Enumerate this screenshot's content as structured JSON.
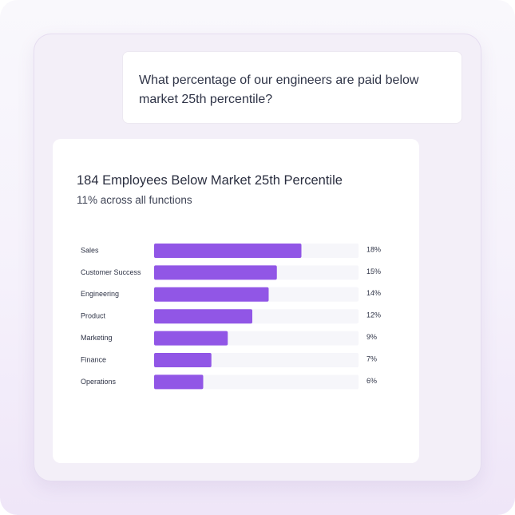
{
  "question": {
    "text": "What percentage of our engineers are paid below market 25th percentile?"
  },
  "chart": {
    "title": "184 Employees Below Market 25th Percentile",
    "subtitle": "11% across all functions"
  },
  "colors": {
    "bar": "#9156e6",
    "track": "#f6f6fa"
  },
  "chart_data": {
    "type": "bar",
    "orientation": "horizontal",
    "title": "184 Employees Below Market 25th Percentile",
    "subtitle": "11% across all functions",
    "categories": [
      "Sales",
      "Customer Success",
      "Engineering",
      "Product",
      "Marketing",
      "Finance",
      "Operations"
    ],
    "values": [
      18,
      15,
      14,
      12,
      9,
      7,
      6
    ],
    "value_labels": [
      "18%",
      "15%",
      "14%",
      "12%",
      "9%",
      "7%",
      "6%"
    ],
    "xlim": [
      0,
      25
    ],
    "grid": false,
    "legend": "none"
  }
}
